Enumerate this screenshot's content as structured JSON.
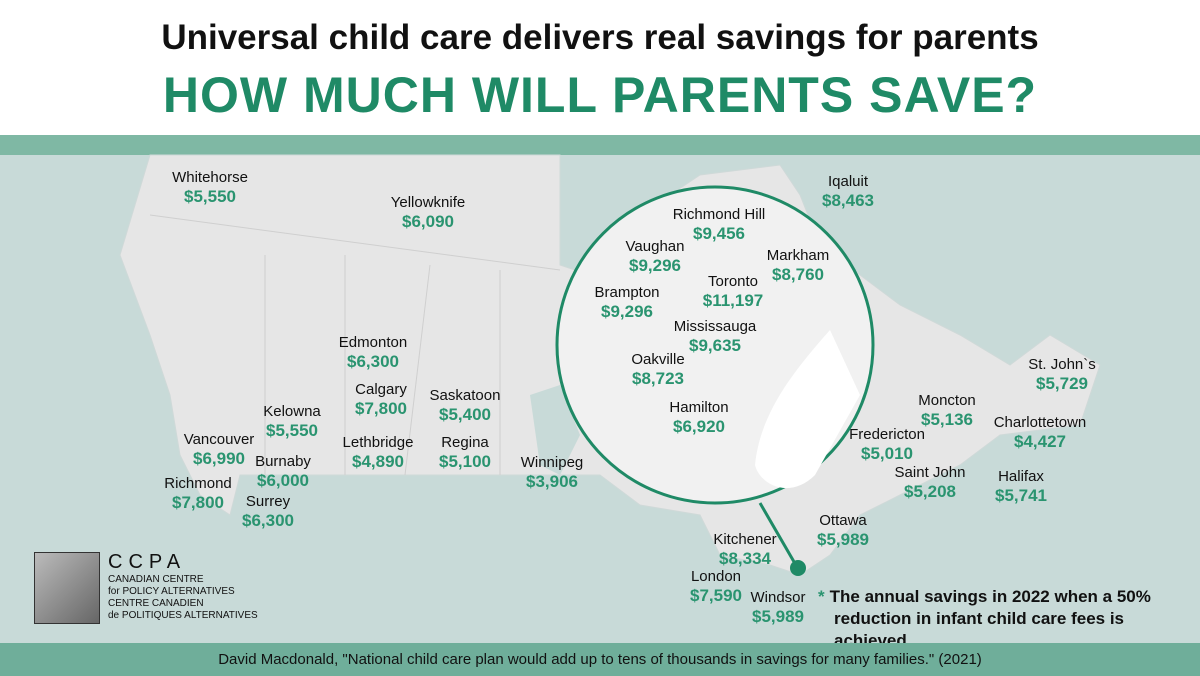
{
  "header": {
    "title": "Universal child care delivers real savings for parents",
    "subtitle": "HOW MUCH WILL PARENTS SAVE?"
  },
  "cities": [
    {
      "name": "Whitehorse",
      "value": "$5,550"
    },
    {
      "name": "Yellowknife",
      "value": "$6,090"
    },
    {
      "name": "Iqaluit",
      "value": "$8,463"
    },
    {
      "name": "Richmond Hill",
      "value": "$9,456"
    },
    {
      "name": "Vaughan",
      "value": "$9,296"
    },
    {
      "name": "Markham",
      "value": "$8,760"
    },
    {
      "name": "Toronto",
      "value": "$11,197"
    },
    {
      "name": "Brampton",
      "value": "$9,296"
    },
    {
      "name": "Mississauga",
      "value": "$9,635"
    },
    {
      "name": "Oakville",
      "value": "$8,723"
    },
    {
      "name": "Hamilton",
      "value": "$6,920"
    },
    {
      "name": "St. John`s",
      "value": "$5,729"
    },
    {
      "name": "Edmonton",
      "value": "$6,300"
    },
    {
      "name": "Calgary",
      "value": "$7,800"
    },
    {
      "name": "Saskatoon",
      "value": "$5,400"
    },
    {
      "name": "Kelowna",
      "value": "$5,550"
    },
    {
      "name": "Lethbridge",
      "value": "$4,890"
    },
    {
      "name": "Regina",
      "value": "$5,100"
    },
    {
      "name": "Vancouver",
      "value": "$6,990"
    },
    {
      "name": "Burnaby",
      "value": "$6,000"
    },
    {
      "name": "Richmond",
      "value": "$7,800"
    },
    {
      "name": "Surrey",
      "value": "$6,300"
    },
    {
      "name": "Winnipeg",
      "value": "$3,906"
    },
    {
      "name": "Moncton",
      "value": "$5,136"
    },
    {
      "name": "Charlottetown",
      "value": "$4,427"
    },
    {
      "name": "Fredericton",
      "value": "$5,010"
    },
    {
      "name": "Saint John",
      "value": "$5,208"
    },
    {
      "name": "Halifax",
      "value": "$5,741"
    },
    {
      "name": "Ottawa",
      "value": "$5,989"
    },
    {
      "name": "Kitchener",
      "value": "$8,334"
    },
    {
      "name": "London",
      "value": "$7,590"
    },
    {
      "name": "Windsor",
      "value": "$5,989"
    }
  ],
  "note": {
    "asterisk": "*",
    "line1": "The annual savings in 2022 when a 50%",
    "line2": "reduction in infant child care fees is achieved"
  },
  "logo": {
    "acronym": "CCPA",
    "en1": "CANADIAN CENTRE",
    "en2": "for POLICY ALTERNATIVES",
    "fr1": "CENTRE CANADIEN",
    "fr2": "de POLITIQUES ALTERNATIVES"
  },
  "footer": {
    "citation": "David Macdonald, \"National child care plan would add up to tens of thousands in savings for many families.\" (2021)"
  },
  "colors": {
    "accent": "#1f8a66",
    "value": "#2a9470",
    "sea": "#c8dad8",
    "band": "#7fb8a4",
    "footer": "#6fae9a",
    "land": "#e8e8e8"
  }
}
